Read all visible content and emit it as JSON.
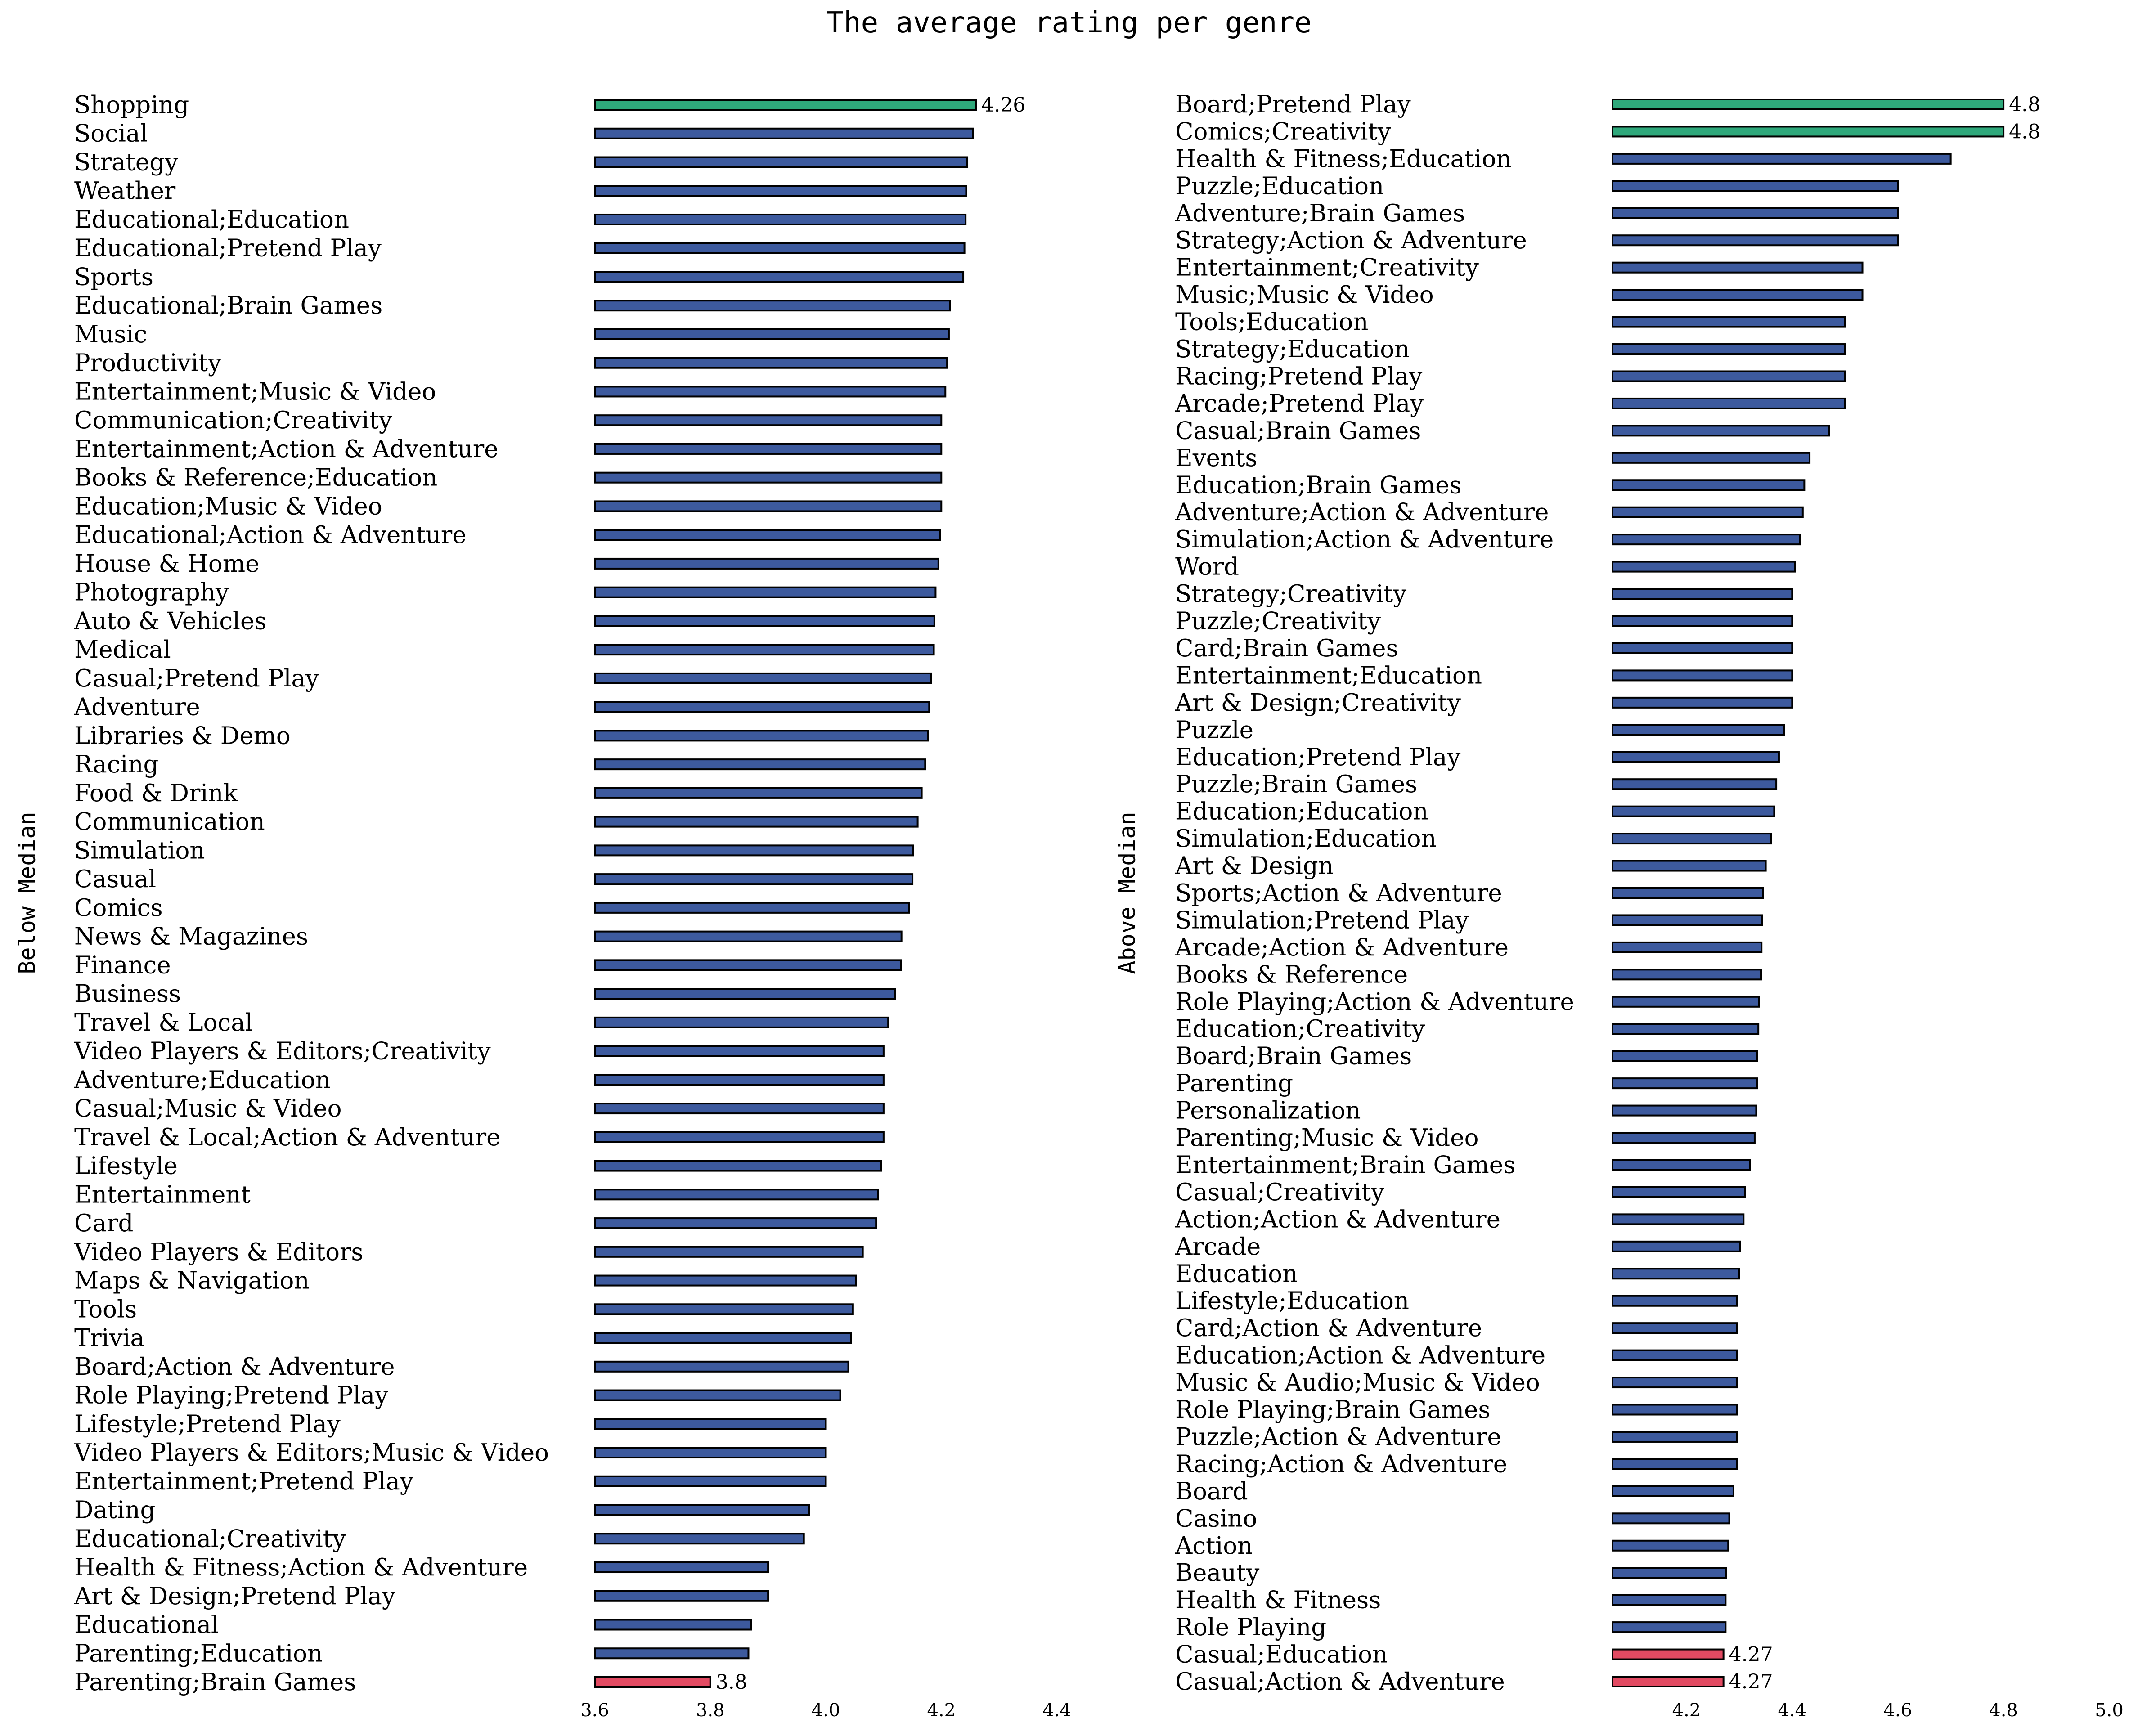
{
  "colors": {
    "default_bar": "#3d5a9e",
    "max_bar": "#2fa87b",
    "min_bar": "#e24a62",
    "bar_edge": "#000000"
  },
  "chart_data": [
    {
      "type": "bar",
      "orientation": "horizontal",
      "title": "The average rating per genre",
      "ylabel": "Below Median",
      "xlim": [
        3.6,
        4.4
      ],
      "xticks": [
        3.6,
        3.8,
        4.0,
        4.2,
        4.4
      ],
      "xtick_labels": [
        "3.6",
        "3.8",
        "4.0",
        "4.2",
        "4.4"
      ],
      "grid": false,
      "categories": [
        "Shopping",
        "Social",
        "Strategy",
        "Weather",
        "Educational;Education",
        "Educational;Pretend Play",
        "Sports",
        "Educational;Brain Games",
        "Music",
        "Productivity",
        "Entertainment;Music & Video",
        "Communication;Creativity",
        "Entertainment;Action & Adventure",
        "Books & Reference;Education",
        "Education;Music & Video",
        "Educational;Action & Adventure",
        "House & Home",
        "Photography",
        "Auto & Vehicles",
        "Medical",
        "Casual;Pretend Play",
        "Adventure",
        "Libraries & Demo",
        "Racing",
        "Food & Drink",
        "Communication",
        "Simulation",
        "Casual",
        "Comics",
        "News & Magazines",
        "Finance",
        "Business",
        "Travel & Local",
        "Video Players & Editors;Creativity",
        "Adventure;Education",
        "Casual;Music & Video",
        "Travel & Local;Action & Adventure",
        "Lifestyle",
        "Entertainment",
        "Card",
        "Video Players & Editors",
        "Maps & Navigation",
        "Tools",
        "Trivia",
        "Board;Action & Adventure",
        "Role Playing;Pretend Play",
        "Lifestyle;Pretend Play",
        "Video Players & Editors;Music & Video",
        "Entertainment;Pretend Play",
        "Dating",
        "Educational;Creativity",
        "Health & Fitness;Action & Adventure",
        "Art & Design;Pretend Play",
        "Educational",
        "Parenting;Education",
        "Parenting;Brain Games"
      ],
      "values": [
        4.26,
        4.255,
        4.245,
        4.243,
        4.242,
        4.24,
        4.238,
        4.215,
        4.213,
        4.21,
        4.207,
        4.2,
        4.2,
        4.2,
        4.2,
        4.198,
        4.195,
        4.19,
        4.188,
        4.187,
        4.182,
        4.179,
        4.177,
        4.172,
        4.166,
        4.159,
        4.151,
        4.15,
        4.144,
        4.131,
        4.13,
        4.12,
        4.108,
        4.1,
        4.1,
        4.1,
        4.1,
        4.096,
        4.09,
        4.087,
        4.064,
        4.052,
        4.047,
        4.044,
        4.039,
        4.025,
        4.0,
        4.0,
        4.0,
        3.971,
        3.962,
        3.9,
        3.9,
        3.871,
        3.866,
        3.8
      ],
      "value_labels": {
        "first": "4.26",
        "last": "3.8"
      }
    },
    {
      "type": "bar",
      "orientation": "horizontal",
      "title": "",
      "ylabel": "Above Median",
      "xlim": [
        4.06,
        5.0
      ],
      "xticks": [
        4.2,
        4.4,
        4.6,
        4.8,
        5.0
      ],
      "xtick_labels": [
        "4.2",
        "4.4",
        "4.6",
        "4.8",
        "5.0"
      ],
      "grid": false,
      "categories": [
        "Board;Pretend Play",
        "Comics;Creativity",
        "Health & Fitness;Education",
        "Puzzle;Education",
        "Adventure;Brain Games",
        "Strategy;Action & Adventure",
        "Entertainment;Creativity",
        "Music;Music & Video",
        "Tools;Education",
        "Strategy;Education",
        "Racing;Pretend Play",
        "Arcade;Pretend Play",
        "Casual;Brain Games",
        "Events",
        "Education;Brain Games",
        "Adventure;Action & Adventure",
        "Simulation;Action & Adventure",
        "Word",
        "Strategy;Creativity",
        "Puzzle;Creativity",
        "Card;Brain Games",
        "Entertainment;Education",
        "Art & Design;Creativity",
        "Puzzle",
        "Education;Pretend Play",
        "Puzzle;Brain Games",
        "Education;Education",
        "Simulation;Education",
        "Art & Design",
        "Sports;Action & Adventure",
        "Simulation;Pretend Play",
        "Arcade;Action & Adventure",
        "Books & Reference",
        "Role Playing;Action & Adventure",
        "Education;Creativity",
        "Board;Brain Games",
        "Parenting",
        "Personalization",
        "Parenting;Music & Video",
        "Entertainment;Brain Games",
        "Casual;Creativity",
        "Action;Action & Adventure",
        "Arcade",
        "Education",
        "Lifestyle;Education",
        "Card;Action & Adventure",
        "Education;Action & Adventure",
        "Music & Audio;Music & Video",
        "Role Playing;Brain Games",
        "Puzzle;Action & Adventure",
        "Racing;Action & Adventure",
        "Board",
        "Casino",
        "Action",
        "Beauty",
        "Health & Fitness",
        "Role Playing",
        "Casual;Education",
        "Casual;Action & Adventure"
      ],
      "values": [
        4.8,
        4.8,
        4.7,
        4.6,
        4.6,
        4.6,
        4.533,
        4.533,
        4.5,
        4.5,
        4.5,
        4.5,
        4.47,
        4.433,
        4.423,
        4.42,
        4.415,
        4.405,
        4.4,
        4.4,
        4.4,
        4.4,
        4.4,
        4.385,
        4.375,
        4.37,
        4.366,
        4.36,
        4.35,
        4.345,
        4.343,
        4.342,
        4.341,
        4.337,
        4.336,
        4.334,
        4.334,
        4.332,
        4.329,
        4.32,
        4.311,
        4.308,
        4.301,
        4.3,
        4.295,
        4.295,
        4.295,
        4.295,
        4.295,
        4.295,
        4.295,
        4.289,
        4.281,
        4.279,
        4.275,
        4.274,
        4.274,
        4.27,
        4.27
      ],
      "value_labels": {
        "first": "4.8",
        "second": "4.8",
        "second_last": "4.27",
        "last": "4.27"
      }
    }
  ]
}
